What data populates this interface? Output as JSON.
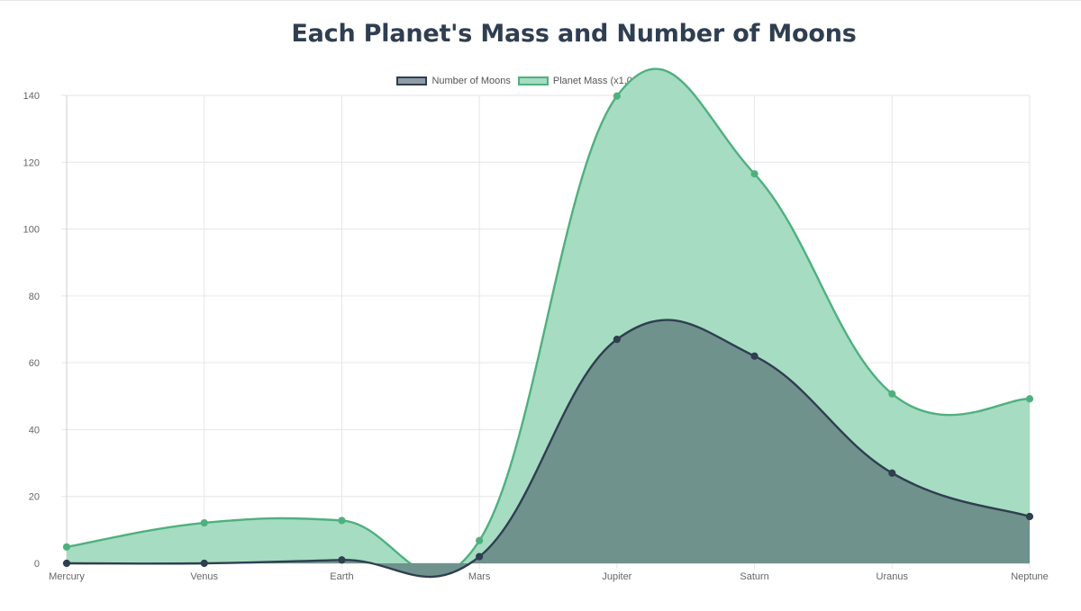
{
  "chart_data": {
    "type": "area",
    "title": "Each Planet's Mass and Number of Moons",
    "categories": [
      "Mercury",
      "Venus",
      "Earth",
      "Mars",
      "Jupiter",
      "Saturn",
      "Uranus",
      "Neptune"
    ],
    "series": [
      {
        "name": "Number of Moons",
        "values": [
          0,
          0,
          1,
          2,
          67,
          62,
          27,
          14
        ],
        "color": "#2f3e50",
        "fill": "#6f928c"
      },
      {
        "name": "Planet Mass (x1,000 km)",
        "values": [
          4.9,
          12.1,
          12.8,
          6.8,
          139.8,
          116.5,
          50.7,
          49.2
        ],
        "color": "#4fb07f",
        "fill": "#a6dcc2"
      }
    ],
    "y_ticks": [
      "0",
      "20",
      "40",
      "60",
      "80",
      "100",
      "120",
      "140"
    ],
    "ylim": [
      0,
      140
    ],
    "grid": true,
    "legend_position": "top"
  }
}
